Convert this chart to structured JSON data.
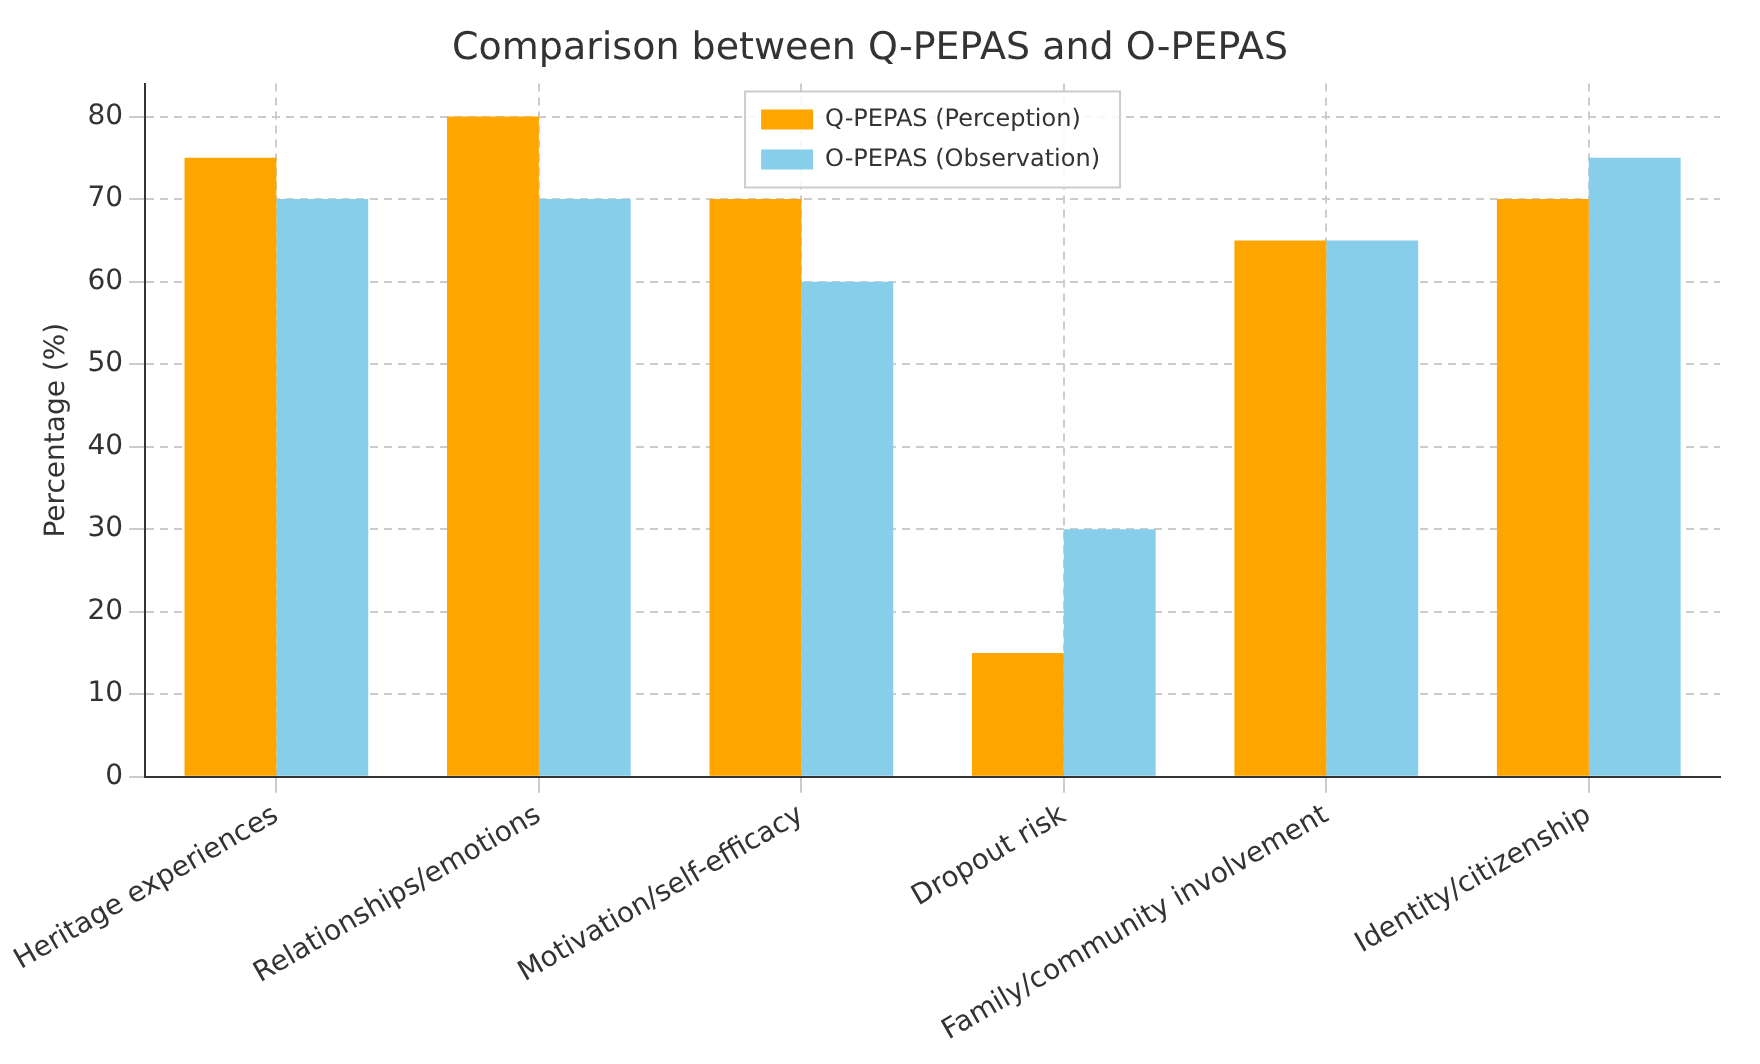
{
  "chart_data": {
    "type": "bar",
    "title": "Comparison between Q-PEPAS and O-PEPAS",
    "ylabel": "Percentage (%)",
    "categories": [
      "Heritage experiences",
      "Relationships/emotions",
      "Motivation/self-efficacy",
      "Dropout risk",
      "Family/community involvement",
      "Identity/citizenship"
    ],
    "series": [
      {
        "name": "Q-PEPAS (Perception)",
        "color": "#ffa500",
        "values": [
          75,
          80,
          70,
          15,
          65,
          70
        ]
      },
      {
        "name": "O-PEPAS (Observation)",
        "color": "#87ceeb",
        "values": [
          70,
          70,
          60,
          30,
          65,
          75
        ]
      }
    ],
    "ylim": [
      0,
      84
    ],
    "yticks": [
      0,
      10,
      20,
      30,
      40,
      50,
      60,
      70,
      80
    ],
    "grid": true,
    "legend": "top"
  }
}
